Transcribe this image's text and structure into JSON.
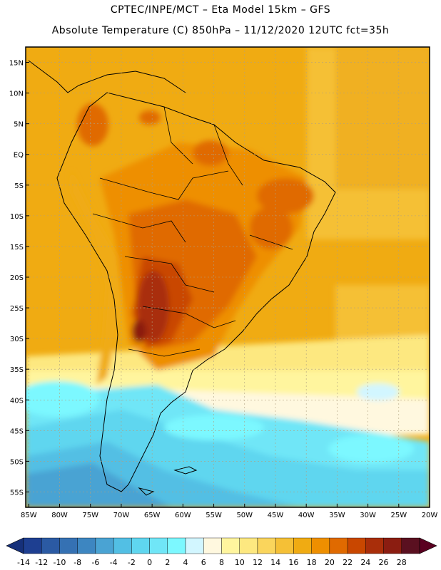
{
  "title": {
    "line1": "CPTEC/INPE/MCT –  Eta Model 15km – GFS",
    "line2": "Absolute Temperature (C) 850hPa – 11/12/2020 12UTC fct=35h"
  },
  "axes": {
    "lat_labels": [
      "15N",
      "10N",
      "5N",
      "EQ",
      "5S",
      "10S",
      "15S",
      "20S",
      "25S",
      "30S",
      "35S",
      "40S",
      "45S",
      "50S",
      "55S"
    ],
    "lat_values": [
      15,
      10,
      5,
      0,
      -5,
      -10,
      -15,
      -20,
      -25,
      -30,
      -35,
      -40,
      -45,
      -50,
      -55
    ],
    "lon_labels": [
      "85W",
      "80W",
      "75W",
      "70W",
      "65W",
      "60W",
      "55W",
      "50W",
      "45W",
      "40W",
      "35W",
      "30W",
      "25W",
      "20W"
    ],
    "lon_values": [
      -85,
      -80,
      -75,
      -70,
      -65,
      -60,
      -55,
      -50,
      -45,
      -40,
      -35,
      -30,
      -25,
      -20
    ],
    "lat_range": [
      -57.5,
      17.5
    ],
    "lon_range": [
      -85.5,
      -20
    ]
  },
  "colorbar": {
    "labels": [
      "-14",
      "-12",
      "-10",
      "-8",
      "-6",
      "-4",
      "-2",
      "0",
      "2",
      "4",
      "6",
      "8",
      "10",
      "12",
      "14",
      "16",
      "18",
      "20",
      "22",
      "24",
      "26",
      "28"
    ],
    "colors": [
      "#1e3f91",
      "#2b5aa3",
      "#3571b3",
      "#3d86c1",
      "#4aa3d3",
      "#52bfe4",
      "#5fd6ef",
      "#70e6f7",
      "#7cf8ff",
      "#d2f6ff",
      "#fff8df",
      "#fff59e",
      "#fde880",
      "#fad55c",
      "#f5c036",
      "#f0ab12",
      "#ee8f00",
      "#e06a00",
      "#c94700",
      "#a92e0a",
      "#8b1d11",
      "#5a1020"
    ],
    "under_color": "#16307a",
    "over_color": "#5a0020"
  },
  "legend": {
    "temperature_scale": "Absolute Temperature (C)"
  }
}
